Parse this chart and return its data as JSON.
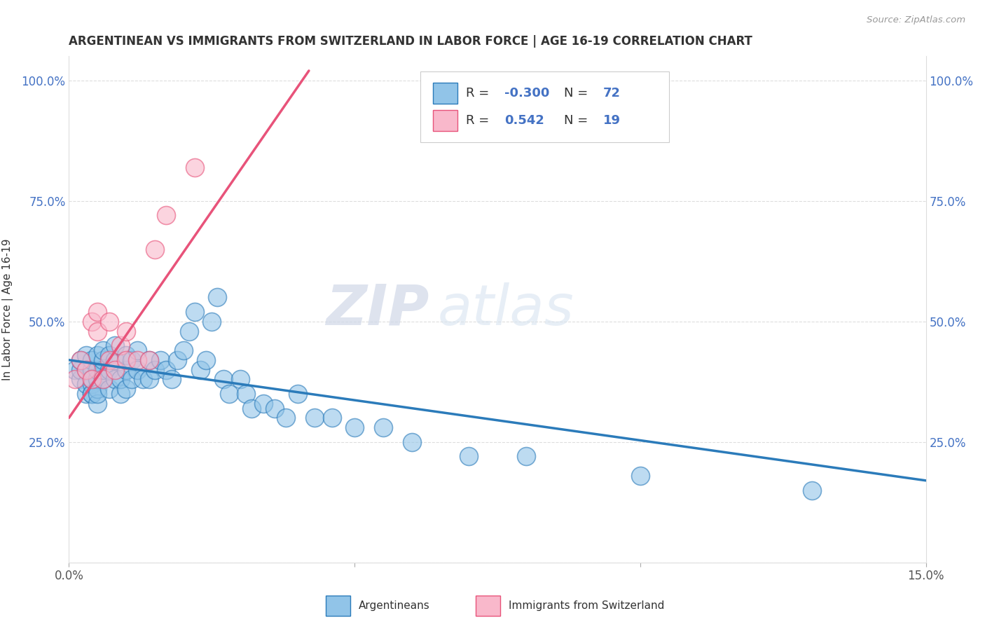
{
  "title": "ARGENTINEAN VS IMMIGRANTS FROM SWITZERLAND IN LABOR FORCE | AGE 16-19 CORRELATION CHART",
  "source": "Source: ZipAtlas.com",
  "ylabel": "In Labor Force | Age 16-19",
  "xlim": [
    0.0,
    0.15
  ],
  "ylim": [
    0.0,
    1.05
  ],
  "x_ticks": [
    0.0,
    0.05,
    0.1,
    0.15
  ],
  "x_tick_labels": [
    "0.0%",
    "",
    "",
    "15.0%"
  ],
  "y_ticks": [
    0.0,
    0.25,
    0.5,
    0.75,
    1.0
  ],
  "y_tick_labels": [
    "",
    "25.0%",
    "50.0%",
    "75.0%",
    "100.0%"
  ],
  "blue_color": "#91c4e8",
  "pink_color": "#f9b8cb",
  "blue_line_color": "#2b7bba",
  "pink_line_color": "#e8537a",
  "watermark_zip": "ZIP",
  "watermark_atlas": "atlas",
  "legend_R_blue": "-0.300",
  "legend_N_blue": "72",
  "legend_R_pink": "0.542",
  "legend_N_pink": "19",
  "blue_points_x": [
    0.001,
    0.002,
    0.002,
    0.002,
    0.003,
    0.003,
    0.003,
    0.003,
    0.004,
    0.004,
    0.004,
    0.004,
    0.004,
    0.004,
    0.005,
    0.005,
    0.005,
    0.005,
    0.005,
    0.005,
    0.006,
    0.006,
    0.006,
    0.006,
    0.007,
    0.007,
    0.007,
    0.008,
    0.008,
    0.008,
    0.009,
    0.009,
    0.01,
    0.01,
    0.01,
    0.011,
    0.011,
    0.012,
    0.012,
    0.013,
    0.014,
    0.014,
    0.015,
    0.016,
    0.017,
    0.018,
    0.019,
    0.02,
    0.021,
    0.022,
    0.023,
    0.024,
    0.025,
    0.026,
    0.027,
    0.028,
    0.03,
    0.031,
    0.032,
    0.034,
    0.036,
    0.038,
    0.04,
    0.043,
    0.046,
    0.05,
    0.055,
    0.06,
    0.07,
    0.08,
    0.1,
    0.13
  ],
  "blue_points_y": [
    0.4,
    0.38,
    0.4,
    0.42,
    0.35,
    0.37,
    0.4,
    0.43,
    0.35,
    0.37,
    0.4,
    0.42,
    0.35,
    0.38,
    0.33,
    0.36,
    0.38,
    0.4,
    0.43,
    0.35,
    0.38,
    0.4,
    0.42,
    0.44,
    0.36,
    0.4,
    0.43,
    0.38,
    0.42,
    0.45,
    0.35,
    0.38,
    0.36,
    0.4,
    0.43,
    0.38,
    0.42,
    0.4,
    0.44,
    0.38,
    0.38,
    0.42,
    0.4,
    0.42,
    0.4,
    0.38,
    0.42,
    0.44,
    0.48,
    0.52,
    0.4,
    0.42,
    0.5,
    0.55,
    0.38,
    0.35,
    0.38,
    0.35,
    0.32,
    0.33,
    0.32,
    0.3,
    0.35,
    0.3,
    0.3,
    0.28,
    0.28,
    0.25,
    0.22,
    0.22,
    0.18,
    0.15
  ],
  "pink_points_x": [
    0.001,
    0.002,
    0.003,
    0.004,
    0.004,
    0.005,
    0.005,
    0.006,
    0.007,
    0.007,
    0.008,
    0.009,
    0.01,
    0.01,
    0.012,
    0.014,
    0.015,
    0.017,
    0.022
  ],
  "pink_points_y": [
    0.38,
    0.42,
    0.4,
    0.38,
    0.5,
    0.48,
    0.52,
    0.38,
    0.42,
    0.5,
    0.4,
    0.45,
    0.42,
    0.48,
    0.42,
    0.42,
    0.65,
    0.72,
    0.82
  ],
  "pink_line_x0": 0.0,
  "pink_line_y0": 0.3,
  "pink_line_x1": 0.042,
  "pink_line_y1": 1.02,
  "blue_line_x0": 0.0,
  "blue_line_y0": 0.42,
  "blue_line_x1": 0.15,
  "blue_line_y1": 0.17
}
